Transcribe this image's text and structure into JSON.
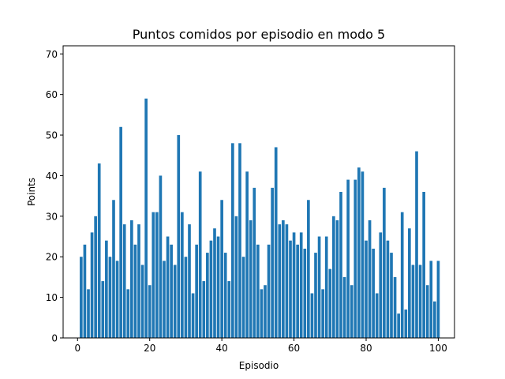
{
  "chart_data": {
    "type": "bar",
    "title": "Puntos comidos por episodio en modo 5",
    "xlabel": "Episodio",
    "ylabel": "Points",
    "xlim": [
      -4,
      104.5
    ],
    "ylim": [
      0,
      72
    ],
    "xticks": [
      0,
      20,
      40,
      60,
      80,
      100
    ],
    "yticks": [
      0,
      10,
      20,
      30,
      40,
      50,
      60,
      70
    ],
    "bar_color": "#1f77b4",
    "grid": false,
    "x": [
      1,
      2,
      3,
      4,
      5,
      6,
      7,
      8,
      9,
      10,
      11,
      12,
      13,
      14,
      15,
      16,
      17,
      18,
      19,
      20,
      21,
      22,
      23,
      24,
      25,
      26,
      27,
      28,
      29,
      30,
      31,
      32,
      33,
      34,
      35,
      36,
      37,
      38,
      39,
      40,
      41,
      42,
      43,
      44,
      45,
      46,
      47,
      48,
      49,
      50,
      51,
      52,
      53,
      54,
      55,
      56,
      57,
      58,
      59,
      60,
      61,
      62,
      63,
      64,
      65,
      66,
      67,
      68,
      69,
      70,
      71,
      72,
      73,
      74,
      75,
      76,
      77,
      78,
      79,
      80,
      81,
      82,
      83,
      84,
      85,
      86,
      87,
      88,
      89,
      90,
      91,
      92,
      93,
      94,
      95,
      96,
      97,
      98,
      99,
      100
    ],
    "values": [
      20,
      23,
      12,
      26,
      30,
      43,
      14,
      24,
      20,
      34,
      19,
      52,
      28,
      12,
      29,
      23,
      28,
      18,
      59,
      13,
      31,
      31,
      40,
      19,
      25,
      23,
      18,
      50,
      31,
      20,
      28,
      11,
      23,
      41,
      14,
      21,
      24,
      27,
      25,
      34,
      21,
      14,
      48,
      30,
      48,
      20,
      41,
      29,
      37,
      23,
      12,
      13,
      23,
      37,
      47,
      28,
      29,
      28,
      24,
      26,
      23,
      26,
      22,
      34,
      11,
      21,
      25,
      12,
      25,
      17,
      30,
      29,
      36,
      15,
      39,
      13,
      39,
      42,
      41,
      24,
      29,
      22,
      11,
      26,
      37,
      24,
      21,
      15,
      6,
      31,
      7,
      27,
      18,
      46,
      18,
      36,
      13,
      19,
      9,
      19
    ]
  }
}
